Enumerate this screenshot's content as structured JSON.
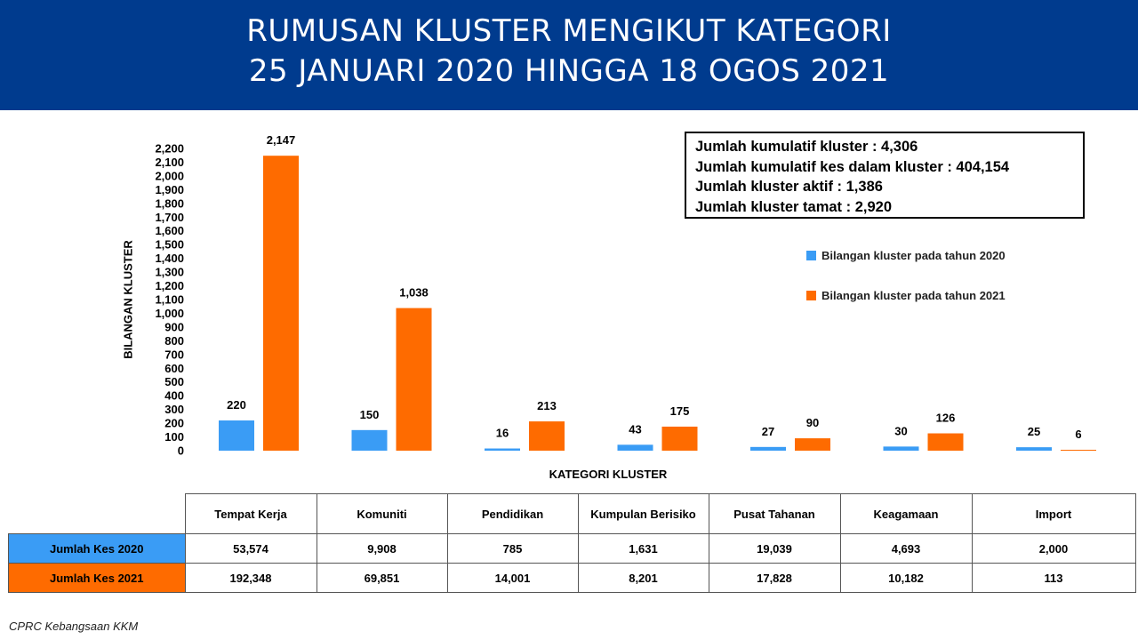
{
  "header": {
    "title_line1": "RUMUSAN KLUSTER MENGIKUT KATEGORI",
    "title_line2": "25 JANUARI 2020 HINGGA 18 OGOS 2021"
  },
  "colors": {
    "header_bg": "#003b8e",
    "series_2020": "#3a9cf5",
    "series_2021": "#fe6b00"
  },
  "summary": [
    "Jumlah kumulatif kluster : 4,306",
    "Jumlah kumulatif kes dalam kluster : 404,154",
    "Jumlah kluster aktif : 1,386",
    "Jumlah kluster tamat : 2,920"
  ],
  "chart_data": {
    "type": "bar",
    "title": "",
    "xlabel": "KATEGORI KLUSTER",
    "ylabel": "BILANGAN KLUSTER",
    "ylim": [
      0,
      2200
    ],
    "ytick_step": 100,
    "grid": false,
    "legend_position": "right",
    "categories": [
      "Tempat Kerja",
      "Komuniti",
      "Pendidikan",
      "Kumpulan Berisiko",
      "Pusat Tahanan",
      "Keagamaan",
      "Import"
    ],
    "series": [
      {
        "name": "Bilangan kluster pada tahun 2020",
        "values": [
          220,
          150,
          16,
          43,
          27,
          30,
          25
        ],
        "labels": [
          "220",
          "150",
          "16",
          "43",
          "27",
          "30",
          "25"
        ]
      },
      {
        "name": "Bilangan kluster pada tahun 2021",
        "values": [
          2147,
          1038,
          213,
          175,
          90,
          126,
          6
        ],
        "labels": [
          "2,147",
          "1,038",
          "213",
          "175",
          "90",
          "126",
          "6"
        ]
      }
    ]
  },
  "table": {
    "columns": [
      "Tempat Kerja",
      "Komuniti",
      "Pendidikan",
      "Kumpulan Berisiko",
      "Pusat Tahanan",
      "Keagamaan",
      "Import"
    ],
    "rows": [
      {
        "label": "Jumlah Kes 2020",
        "values": [
          "53,574",
          "9,908",
          "785",
          "1,631",
          "19,039",
          "4,693",
          "2,000"
        ]
      },
      {
        "label": "Jumlah Kes 2021",
        "values": [
          "192,348",
          "69,851",
          "14,001",
          "8,201",
          "17,828",
          "10,182",
          "113"
        ]
      }
    ]
  },
  "footer": {
    "source": "CPRC Kebangsaan KKM"
  }
}
